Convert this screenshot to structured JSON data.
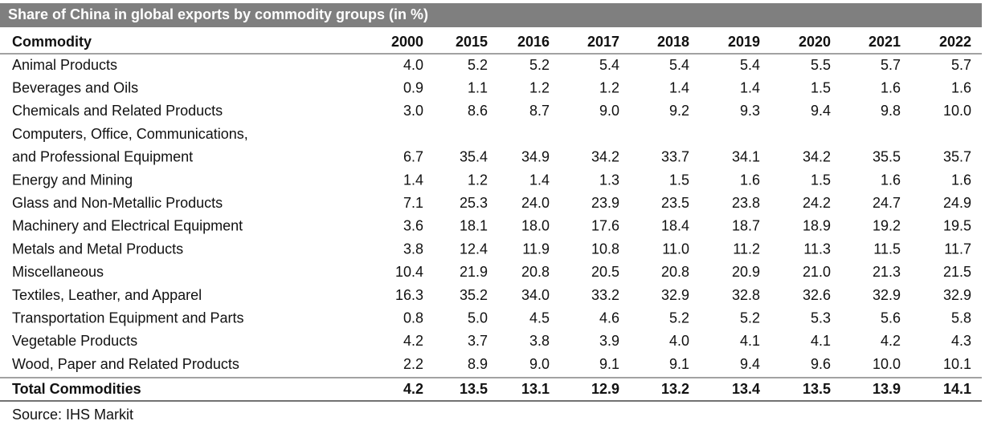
{
  "header": {
    "title": "Share of China in global exports by commodity groups (in %)"
  },
  "table": {
    "columns": [
      "Commodity",
      "2000",
      "2015",
      "2016",
      "2017",
      "2018",
      "2019",
      "2020",
      "2021",
      "2022"
    ],
    "rows": [
      {
        "label": "Animal Products",
        "values": [
          "4.0",
          "5.2",
          "5.2",
          "5.4",
          "5.4",
          "5.4",
          "5.5",
          "5.7",
          "5.7"
        ]
      },
      {
        "label": "Beverages and Oils",
        "values": [
          "0.9",
          "1.1",
          "1.2",
          "1.2",
          "1.4",
          "1.4",
          "1.5",
          "1.6",
          "1.6"
        ]
      },
      {
        "label": "Chemicals and Related Products",
        "values": [
          "3.0",
          "8.6",
          "8.7",
          "9.0",
          "9.2",
          "9.3",
          "9.4",
          "9.8",
          "10.0"
        ]
      },
      {
        "label": [
          "Computers, Office, Communications,",
          "and Professional Equipment"
        ],
        "values": [
          "6.7",
          "35.4",
          "34.9",
          "34.2",
          "33.7",
          "34.1",
          "34.2",
          "35.5",
          "35.7"
        ]
      },
      {
        "label": "Energy and Mining",
        "values": [
          "1.4",
          "1.2",
          "1.4",
          "1.3",
          "1.5",
          "1.6",
          "1.5",
          "1.6",
          "1.6"
        ]
      },
      {
        "label": "Glass and Non-Metallic Products",
        "values": [
          "7.1",
          "25.3",
          "24.0",
          "23.9",
          "23.5",
          "23.8",
          "24.2",
          "24.7",
          "24.9"
        ]
      },
      {
        "label": "Machinery and Electrical Equipment",
        "values": [
          "3.6",
          "18.1",
          "18.0",
          "17.6",
          "18.4",
          "18.7",
          "18.9",
          "19.2",
          "19.5"
        ]
      },
      {
        "label": "Metals and Metal Products",
        "values": [
          "3.8",
          "12.4",
          "11.9",
          "10.8",
          "11.0",
          "11.2",
          "11.3",
          "11.5",
          "11.7"
        ]
      },
      {
        "label": "Miscellaneous",
        "values": [
          "10.4",
          "21.9",
          "20.8",
          "20.5",
          "20.8",
          "20.9",
          "21.0",
          "21.3",
          "21.5"
        ]
      },
      {
        "label": "Textiles, Leather, and Apparel",
        "values": [
          "16.3",
          "35.2",
          "34.0",
          "33.2",
          "32.9",
          "32.8",
          "32.6",
          "32.9",
          "32.9"
        ]
      },
      {
        "label": "Transportation Equipment and Parts",
        "values": [
          "0.8",
          "5.0",
          "4.5",
          "4.6",
          "5.2",
          "5.2",
          "5.3",
          "5.6",
          "5.8"
        ]
      },
      {
        "label": "Vegetable Products",
        "values": [
          "4.2",
          "3.7",
          "3.8",
          "3.9",
          "4.0",
          "4.1",
          "4.1",
          "4.2",
          "4.3"
        ]
      },
      {
        "label": "Wood, Paper and Related Products",
        "values": [
          "2.2",
          "8.9",
          "9.0",
          "9.1",
          "9.1",
          "9.4",
          "9.6",
          "10.0",
          "10.1"
        ]
      }
    ],
    "total": {
      "label": "Total Commodities",
      "values": [
        "4.2",
        "13.5",
        "13.1",
        "12.9",
        "13.2",
        "13.4",
        "13.5",
        "13.9",
        "14.1"
      ]
    }
  },
  "footer": {
    "source": "Source: IHS Markit"
  }
}
